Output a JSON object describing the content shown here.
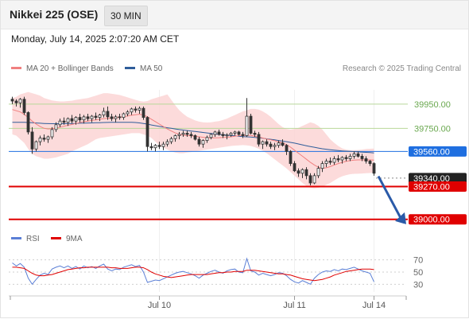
{
  "header": {
    "title": "Nikkei 225 (OSE)",
    "timeframe": "30 MIN"
  },
  "datetime": "Monday, July 14, 2025 2:07:20 AM CET",
  "legend": {
    "ma20": "MA 20 + Bollinger Bands",
    "ma50": "MA 50"
  },
  "credit": "Research © 2025 Trading Central",
  "colors": {
    "ma20": "#f08080",
    "ma50": "#2f5d9a",
    "bands": "#fcd5d5",
    "green": "#6aa84f",
    "blue": "#1f6fe0",
    "red": "#e00000",
    "dark": "#222222",
    "rsi": "#5b7fd6",
    "rsi_ma": "#e00000"
  },
  "chart_data": [
    {
      "type": "candlestick",
      "x_tick_labels": [
        "Jul 10",
        "Jul 11",
        "Jul 14"
      ],
      "price_range": [
        38900,
        40080
      ],
      "levels": [
        {
          "value": 39950,
          "label": "39950.00",
          "style": "green"
        },
        {
          "value": 39750,
          "label": "39750.00",
          "style": "green"
        },
        {
          "value": 39560,
          "label": "39560.00",
          "style": "blue"
        },
        {
          "value": 39340,
          "label": "39340.00",
          "style": "dark"
        },
        {
          "value": 39270,
          "label": "39270.00",
          "style": "red"
        },
        {
          "value": 39000,
          "label": "39000.00",
          "style": "red"
        }
      ],
      "candles": [
        [
          39990,
          40010,
          39950,
          39975
        ],
        [
          39975,
          39990,
          39930,
          39960
        ],
        [
          39960,
          40000,
          39920,
          39990
        ],
        [
          39990,
          40010,
          39860,
          39880
        ],
        [
          39880,
          39890,
          39700,
          39720
        ],
        [
          39720,
          39760,
          39540,
          39580
        ],
        [
          39580,
          39650,
          39560,
          39640
        ],
        [
          39640,
          39690,
          39610,
          39670
        ],
        [
          39670,
          39700,
          39640,
          39660
        ],
        [
          39660,
          39690,
          39630,
          39680
        ],
        [
          39680,
          39760,
          39660,
          39740
        ],
        [
          39740,
          39800,
          39720,
          39780
        ],
        [
          39780,
          39830,
          39760,
          39810
        ],
        [
          39810,
          39840,
          39780,
          39800
        ],
        [
          39800,
          39840,
          39770,
          39830
        ],
        [
          39830,
          39860,
          39790,
          39810
        ],
        [
          39810,
          39850,
          39780,
          39840
        ],
        [
          39840,
          39870,
          39800,
          39820
        ],
        [
          39820,
          39860,
          39790,
          39845
        ],
        [
          39845,
          39870,
          39810,
          39830
        ],
        [
          39830,
          39860,
          39800,
          39850
        ],
        [
          39850,
          39880,
          39820,
          39840
        ],
        [
          39840,
          39870,
          39810,
          39860
        ],
        [
          39860,
          39920,
          39840,
          39890
        ],
        [
          39890,
          39930,
          39820,
          39845
        ],
        [
          39845,
          39870,
          39810,
          39830
        ],
        [
          39830,
          39860,
          39800,
          39845
        ],
        [
          39845,
          39870,
          39820,
          39840
        ],
        [
          39840,
          39880,
          39820,
          39870
        ],
        [
          39870,
          39900,
          39850,
          39885
        ],
        [
          39885,
          39920,
          39860,
          39910
        ],
        [
          39910,
          39930,
          39880,
          39900
        ],
        [
          39900,
          39930,
          39870,
          39915
        ],
        [
          39915,
          39930,
          39820,
          39840
        ],
        [
          39840,
          39850,
          39560,
          39600
        ],
        [
          39600,
          39630,
          39570,
          39590
        ],
        [
          39590,
          39620,
          39560,
          39610
        ],
        [
          39610,
          39640,
          39580,
          39600
        ],
        [
          39600,
          39640,
          39570,
          39620
        ],
        [
          39620,
          39660,
          39600,
          39640
        ],
        [
          39640,
          39680,
          39620,
          39665
        ],
        [
          39665,
          39700,
          39640,
          39690
        ],
        [
          39690,
          39720,
          39660,
          39700
        ],
        [
          39700,
          39730,
          39680,
          39710
        ],
        [
          39710,
          39730,
          39680,
          39700
        ],
        [
          39700,
          39720,
          39670,
          39690
        ],
        [
          39690,
          39700,
          39650,
          39660
        ],
        [
          39660,
          39680,
          39600,
          39620
        ],
        [
          39620,
          39660,
          39590,
          39650
        ],
        [
          39650,
          39690,
          39630,
          39675
        ],
        [
          39675,
          39710,
          39660,
          39700
        ],
        [
          39700,
          39730,
          39680,
          39720
        ],
        [
          39720,
          39740,
          39690,
          39700
        ],
        [
          39700,
          39720,
          39670,
          39690
        ],
        [
          39690,
          39710,
          39660,
          39695
        ],
        [
          39695,
          39720,
          39680,
          39710
        ],
        [
          39710,
          39730,
          39690,
          39720
        ],
        [
          39720,
          39730,
          39690,
          39700
        ],
        [
          39700,
          39720,
          39670,
          39690
        ],
        [
          39690,
          40000,
          39680,
          39850
        ],
        [
          39850,
          39870,
          39700,
          39710
        ],
        [
          39710,
          39730,
          39680,
          39700
        ],
        [
          39700,
          39720,
          39600,
          39620
        ],
        [
          39620,
          39650,
          39580,
          39640
        ],
        [
          39640,
          39660,
          39600,
          39620
        ],
        [
          39620,
          39640,
          39580,
          39600
        ],
        [
          39600,
          39630,
          39570,
          39610
        ],
        [
          39610,
          39650,
          39590,
          39630
        ],
        [
          39630,
          39660,
          39600,
          39610
        ],
        [
          39610,
          39620,
          39530,
          39560
        ],
        [
          39560,
          39570,
          39440,
          39460
        ],
        [
          39460,
          39480,
          39390,
          39400
        ],
        [
          39400,
          39420,
          39350,
          39380
        ],
        [
          39380,
          39420,
          39340,
          39410
        ],
        [
          39410,
          39430,
          39330,
          39360
        ],
        [
          39360,
          39380,
          39280,
          39300
        ],
        [
          39300,
          39380,
          39290,
          39360
        ],
        [
          39360,
          39440,
          39340,
          39420
        ],
        [
          39420,
          39480,
          39390,
          39460
        ],
        [
          39460,
          39500,
          39430,
          39480
        ],
        [
          39480,
          39510,
          39450,
          39470
        ],
        [
          39470,
          39520,
          39450,
          39500
        ],
        [
          39500,
          39530,
          39470,
          39490
        ],
        [
          39490,
          39520,
          39460,
          39510
        ],
        [
          39510,
          39530,
          39480,
          39500
        ],
        [
          39500,
          39540,
          39480,
          39520
        ],
        [
          39520,
          39560,
          39500,
          39540
        ],
        [
          39540,
          39560,
          39510,
          39520
        ],
        [
          39520,
          39540,
          39480,
          39500
        ],
        [
          39500,
          39520,
          39460,
          39480
        ],
        [
          39480,
          39490,
          39440,
          39460
        ],
        [
          39460,
          39470,
          39360,
          39380
        ]
      ],
      "ma20": [
        39905,
        39895,
        39885,
        39865,
        39840,
        39810,
        39785,
        39765,
        39750,
        39745,
        39748,
        39752,
        39760,
        39768,
        39775,
        39782,
        39790,
        39798,
        39805,
        39810,
        39815,
        39820,
        39825,
        39830,
        39832,
        39835,
        39838,
        39842,
        39846,
        39852,
        39858,
        39862,
        39866,
        39860,
        39845,
        39825,
        39805,
        39785,
        39765,
        39745,
        39728,
        39712,
        39700,
        39695,
        39690,
        39688,
        39685,
        39680,
        39676,
        39673,
        39672,
        39672,
        39673,
        39675,
        39677,
        39680,
        39685,
        39690,
        39692,
        39695,
        39692,
        39685,
        39678,
        39670,
        39662,
        39655,
        39648,
        39640,
        39630,
        39615,
        39595,
        39570,
        39545,
        39520,
        39495,
        39470,
        39448,
        39430,
        39420,
        39425,
        39435,
        39448,
        39460,
        39470,
        39478,
        39484,
        39488,
        39490,
        39490,
        39490,
        39490,
        39488
      ],
      "ma50": [
        39800,
        39800,
        39800,
        39800,
        39798,
        39796,
        39794,
        39792,
        39790,
        39789,
        39788,
        39788,
        39788,
        39788,
        39789,
        39790,
        39791,
        39792,
        39793,
        39794,
        39795,
        39796,
        39797,
        39798,
        39799,
        39800,
        39800,
        39800,
        39800,
        39800,
        39800,
        39798,
        39795,
        39790,
        39785,
        39778,
        39772,
        39766,
        39760,
        39755,
        39750,
        39745,
        39740,
        39736,
        39732,
        39728,
        39724,
        39720,
        39716,
        39712,
        39708,
        39704,
        39700,
        39697,
        39694,
        39691,
        39688,
        39685,
        39682,
        39680,
        39678,
        39675,
        39672,
        39668,
        39664,
        39660,
        39655,
        39650,
        39645,
        39640,
        39634,
        39628,
        39621,
        39614,
        39607,
        39600,
        39594,
        39588,
        39582,
        39578,
        39574,
        39570,
        39567,
        39564,
        39562,
        39560,
        39558,
        39556,
        39554,
        39552,
        39550,
        39548
      ],
      "bb_upper": [
        40000,
        40010,
        40030,
        40040,
        40050,
        40040,
        40030,
        40020,
        40000,
        39990,
        39980,
        39975,
        39972,
        39972,
        39975,
        39978,
        39985,
        39990,
        39995,
        40000,
        40010,
        40020,
        40030,
        40040,
        40040,
        40035,
        40030,
        40025,
        40015,
        40005,
        39995,
        39985,
        39975,
        39970,
        39975,
        39990,
        40000,
        40010,
        40020,
        40030,
        39985,
        39940,
        39900,
        39870,
        39845,
        39830,
        39815,
        39805,
        39800,
        39798,
        39800,
        39805,
        39810,
        39820,
        39830,
        39845,
        39860,
        39875,
        39890,
        39900,
        39910,
        39910,
        39905,
        39890,
        39870,
        39845,
        39815,
        39785,
        39760,
        39745,
        39740,
        39745,
        39755,
        39770,
        39785,
        39800,
        39790,
        39770,
        39740,
        39700,
        39660,
        39630,
        39605,
        39585,
        39575,
        39570,
        39570,
        39572,
        39575,
        39580,
        39582,
        39584
      ],
      "bb_lower": [
        39700,
        39690,
        39660,
        39630,
        39580,
        39540,
        39520,
        39510,
        39500,
        39500,
        39505,
        39510,
        39520,
        39530,
        39540,
        39560,
        39575,
        39590,
        39605,
        39620,
        39640,
        39660,
        39670,
        39675,
        39680,
        39685,
        39690,
        39695,
        39700,
        39705,
        39710,
        39710,
        39710,
        39700,
        39690,
        39670,
        39640,
        39610,
        39590,
        39575,
        39560,
        39550,
        39545,
        39545,
        39550,
        39555,
        39560,
        39565,
        39570,
        39575,
        39580,
        39585,
        39590,
        39595,
        39600,
        39605,
        39608,
        39610,
        39612,
        39610,
        39605,
        39595,
        39582,
        39565,
        39545,
        39520,
        39495,
        39470,
        39445,
        39420,
        39390,
        39360,
        39330,
        39300,
        39275,
        39260,
        39255,
        39260,
        39270,
        39285,
        39300,
        39320,
        39340,
        39355,
        39365,
        39372,
        39375,
        39376,
        39378,
        39380,
        39382,
        39385
      ]
    },
    {
      "type": "line",
      "legend": [
        "RSI",
        "9MA"
      ],
      "y_ticks": [
        70,
        50,
        30
      ],
      "ylim": [
        20,
        80
      ],
      "series": [
        {
          "name": "RSI",
          "values": [
            65,
            60,
            64,
            58,
            40,
            30,
            38,
            45,
            48,
            46,
            55,
            58,
            60,
            57,
            60,
            56,
            59,
            55,
            60,
            57,
            59,
            56,
            60,
            63,
            55,
            52,
            55,
            54,
            58,
            60,
            62,
            59,
            61,
            50,
            33,
            35,
            37,
            36,
            39,
            42,
            45,
            48,
            50,
            51,
            49,
            47,
            44,
            40,
            45,
            48,
            51,
            53,
            50,
            48,
            52,
            54,
            55,
            50,
            49,
            72,
            52,
            50,
            45,
            48,
            46,
            44,
            46,
            49,
            48,
            44,
            38,
            34,
            32,
            36,
            33,
            30,
            40,
            46,
            50,
            52,
            51,
            54,
            52,
            55,
            54,
            56,
            58,
            55,
            52,
            50,
            48,
            34
          ]
        },
        {
          "name": "9MA",
          "values": [
            58,
            58,
            57,
            56,
            52,
            48,
            45,
            44,
            44,
            45,
            46,
            48,
            50,
            52,
            54,
            55,
            56,
            57,
            57,
            58,
            58,
            58,
            58,
            58,
            58,
            57,
            57,
            56,
            56,
            56,
            57,
            58,
            58,
            57,
            54,
            50,
            47,
            45,
            43,
            42,
            41,
            42,
            43,
            44,
            45,
            46,
            46,
            46,
            46,
            46,
            47,
            48,
            49,
            49,
            50,
            50,
            51,
            51,
            51,
            53,
            53,
            53,
            52,
            51,
            50,
            49,
            48,
            47,
            47,
            46,
            45,
            43,
            41,
            39,
            38,
            37,
            36,
            37,
            38,
            40,
            42,
            45,
            47,
            49,
            51,
            52,
            53,
            54,
            55,
            55,
            55,
            54
          ]
        }
      ]
    }
  ]
}
